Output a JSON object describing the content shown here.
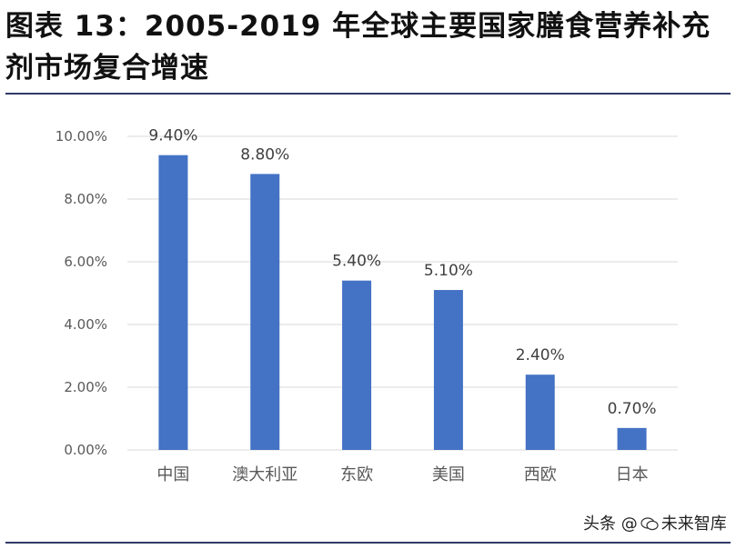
{
  "title": "图表 13：2005-2019 年全球主要国家膳食营养补充剂市场复合增速",
  "watermark": {
    "prefix": "头条 @",
    "name": "未来智库"
  },
  "colors": {
    "bar": "#4472c4",
    "grid": "#d9d9d9",
    "rule": "#2f3a66"
  },
  "chart_data": {
    "type": "bar",
    "title": "",
    "xlabel": "",
    "ylabel": "",
    "categories": [
      "中国",
      "澳大利亚",
      "东欧",
      "美国",
      "西欧",
      "日本"
    ],
    "values": [
      9.4,
      8.8,
      5.4,
      5.1,
      2.4,
      0.7
    ],
    "value_labels": [
      "9.40%",
      "8.80%",
      "5.40%",
      "5.10%",
      "2.40%",
      "0.70%"
    ],
    "ylim": [
      0,
      10
    ],
    "yticks": [
      0,
      2,
      4,
      6,
      8,
      10
    ],
    "ytick_labels": [
      "0.00%",
      "2.00%",
      "4.00%",
      "6.00%",
      "8.00%",
      "10.00%"
    ],
    "grid": true,
    "legend": "none"
  }
}
